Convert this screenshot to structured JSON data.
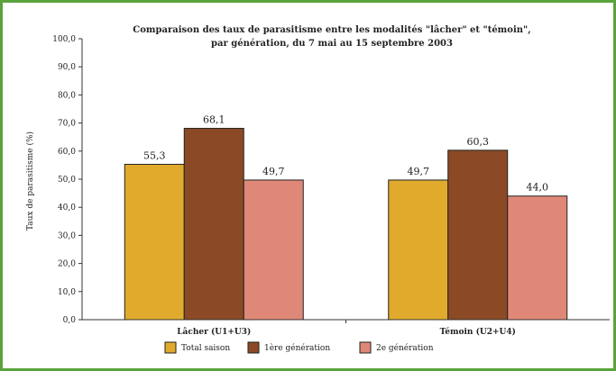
{
  "chart_data": {
    "type": "bar",
    "title": [
      "Comparaison des taux de parasitisme entre les modalités \"lâcher\" et \"témoin\",",
      "par génération, du 7 mai au 15 septembre 2003"
    ],
    "ylabel": "Taux de parasitisme (%)",
    "xlabel": "",
    "ylim": [
      0,
      100
    ],
    "ytick_labels": [
      "0,0",
      "10,0",
      "20,0",
      "30,0",
      "40,0",
      "50,0",
      "60,0",
      "70,0",
      "80,0",
      "90,0",
      "100,0"
    ],
    "grid": false,
    "legend_position": "bottom",
    "categories": [
      "Lâcher (U1+U3)",
      "Témoin (U2+U4)"
    ],
    "series": [
      {
        "name": "Total saison",
        "values": [
          55.3,
          49.7
        ],
        "labels": [
          "55,3",
          "49,7"
        ],
        "color": "#e0aa2c"
      },
      {
        "name": "1ère génération",
        "values": [
          68.1,
          60.3
        ],
        "labels": [
          "68,1",
          "60,3"
        ],
        "color": "#8b4a25"
      },
      {
        "name": "2e génération",
        "values": [
          49.7,
          44.0
        ],
        "labels": [
          "49,7",
          "44,0"
        ],
        "color": "#df8878"
      }
    ]
  }
}
